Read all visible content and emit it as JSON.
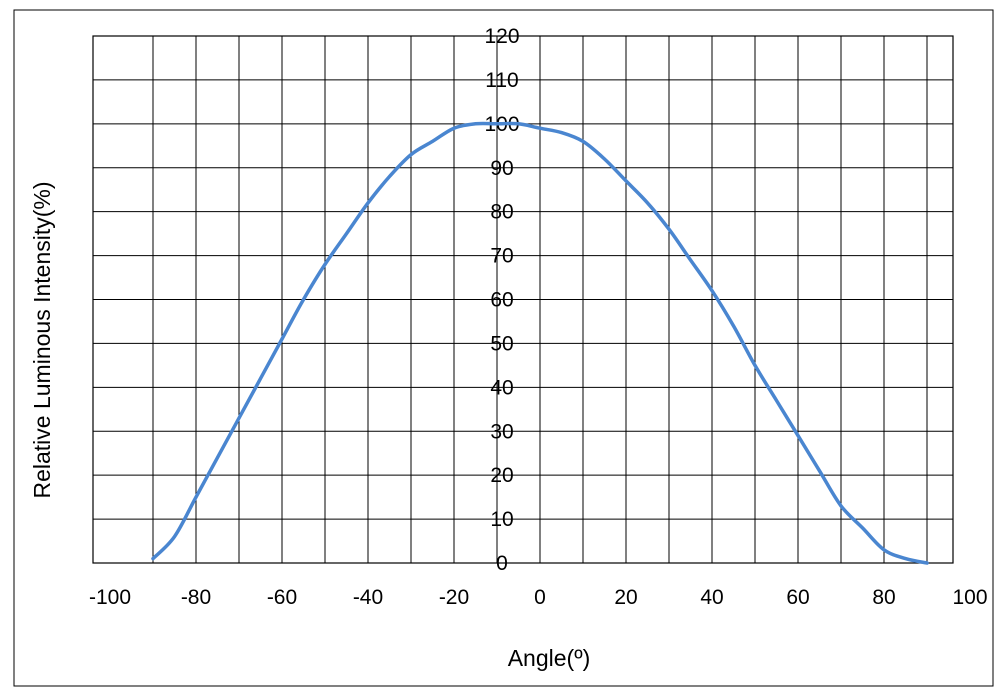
{
  "chart_data": {
    "type": "line",
    "title": "",
    "xlabel": "Angle(º)",
    "ylabel": "Relative Luminous Intensity(%)",
    "xlim": [
      -100,
      100
    ],
    "ylim": [
      0,
      120
    ],
    "x_ticks": [
      -100,
      -80,
      -60,
      -40,
      -20,
      0,
      20,
      40,
      60,
      80,
      100
    ],
    "y_ticks": [
      0,
      10,
      20,
      30,
      40,
      50,
      60,
      70,
      80,
      90,
      100,
      110,
      120
    ],
    "grid": true,
    "legend": "none",
    "colors": {
      "line": "#4a86d0",
      "grid": "#000000"
    },
    "series": [
      {
        "x": [
          -90,
          -85,
          -80,
          -75,
          -70,
          -65,
          -60,
          -55,
          -50,
          -45,
          -40,
          -35,
          -30,
          -25,
          -20,
          -15,
          -10,
          -5,
          0,
          5,
          10,
          15,
          20,
          25,
          30,
          35,
          40,
          45,
          50,
          55,
          60,
          65,
          70,
          75,
          80,
          85,
          90
        ],
        "values": [
          1,
          6,
          15,
          24,
          33,
          42,
          51,
          60,
          68,
          75,
          82,
          88,
          93,
          96,
          99,
          100,
          100,
          100,
          99,
          98,
          96,
          92,
          87,
          82,
          76,
          69,
          62,
          54,
          45,
          37,
          29,
          21,
          13,
          8,
          3,
          1,
          0
        ]
      }
    ]
  }
}
